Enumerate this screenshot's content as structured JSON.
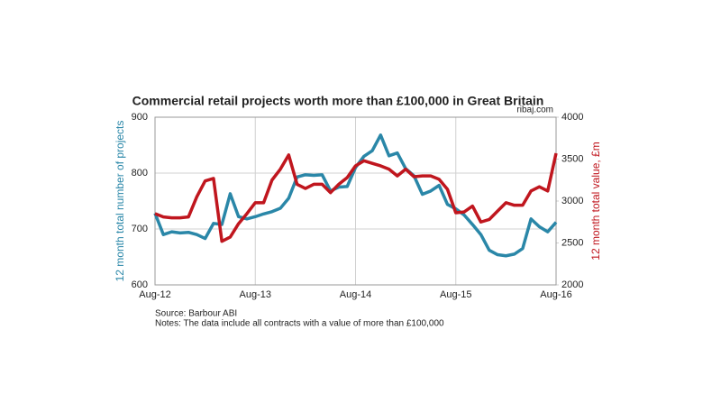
{
  "chart_data": {
    "type": "line",
    "title": "Commercial retail projects worth more than £100,000 in Great Britain",
    "site": "ribaj.com",
    "source": "Source: Barbour ABI",
    "note": "Notes: The data include all contracts with a value of more than £100,000",
    "ylabel": "12 month total number of projects",
    "y2label": "12 month total value, £m",
    "categories": [
      "Aug-12",
      null,
      null,
      null,
      null,
      null,
      null,
      null,
      null,
      null,
      null,
      null,
      "Aug-13",
      null,
      null,
      null,
      null,
      null,
      null,
      null,
      null,
      null,
      null,
      null,
      "Aug-14",
      null,
      null,
      null,
      null,
      null,
      null,
      null,
      null,
      null,
      null,
      null,
      "Aug-15",
      null,
      null,
      null,
      null,
      null,
      null,
      null,
      null,
      null,
      null,
      null,
      "Aug-16"
    ],
    "series": [
      {
        "name": "12 month total number of projects",
        "color": "#2a87a8",
        "axis": "y",
        "values": [
          728,
          690,
          695,
          693,
          694,
          690,
          683,
          710,
          708,
          763,
          722,
          718,
          722,
          727,
          731,
          737,
          755,
          793,
          797,
          796,
          797,
          768,
          775,
          776,
          810,
          830,
          840,
          868,
          831,
          836,
          808,
          795,
          762,
          768,
          778,
          744,
          736,
          725,
          708,
          690,
          662,
          654,
          652,
          655,
          665,
          718,
          704,
          695,
          712
        ]
      },
      {
        "name": "12 month total value, £m",
        "color": "#c0161e",
        "axis": "y2",
        "values": [
          2850,
          2810,
          2800,
          2800,
          2810,
          3050,
          3240,
          3270,
          2520,
          2570,
          2730,
          2850,
          2980,
          2980,
          3250,
          3380,
          3550,
          3200,
          3150,
          3200,
          3200,
          3100,
          3200,
          3280,
          3420,
          3480,
          3450,
          3420,
          3380,
          3300,
          3380,
          3290,
          3300,
          3300,
          3260,
          3140,
          2860,
          2870,
          2940,
          2750,
          2780,
          2880,
          2980,
          2950,
          2950,
          3120,
          3170,
          3120,
          3570
        ]
      }
    ],
    "ylim": [
      600,
      900
    ],
    "yticks": [
      600,
      700,
      800,
      900
    ],
    "y2lim": [
      2000,
      4000
    ],
    "y2ticks": [
      2000,
      2500,
      3000,
      3500,
      4000
    ],
    "grid": true
  }
}
